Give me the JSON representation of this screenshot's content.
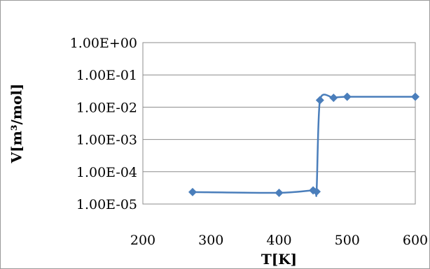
{
  "chart_data": {
    "type": "scatter",
    "title": "",
    "xlabel": "T[K]",
    "ylabel": "V[m³/mol]",
    "y_scale": "log",
    "xlim": [
      200,
      600
    ],
    "ylim": [
      1e-05,
      1
    ],
    "x_ticks": [
      200,
      300,
      400,
      500,
      600
    ],
    "x_tick_labels": [
      "200",
      "300",
      "400",
      "500",
      "600"
    ],
    "y_ticks": [
      1e-05,
      0.0001,
      0.001,
      0.01,
      0.1,
      1
    ],
    "y_tick_labels": [
      "1.00E-05",
      "1.00E-04",
      "1.00E-03",
      "1.00E-02",
      "1.00E-01",
      "1.00E+00"
    ],
    "grid": "horizontal major gridlines",
    "legend": "none",
    "line_style": "smoothed line with diamond markers",
    "series": [
      {
        "color": "#4a7ebb",
        "x": [
          273,
          400,
          450,
          455,
          460,
          480,
          500,
          600
        ],
        "y": [
          2.35e-05,
          2.22e-05,
          2.65e-05,
          2.42e-05,
          0.0165,
          0.0195,
          0.021,
          0.021
        ]
      }
    ]
  }
}
